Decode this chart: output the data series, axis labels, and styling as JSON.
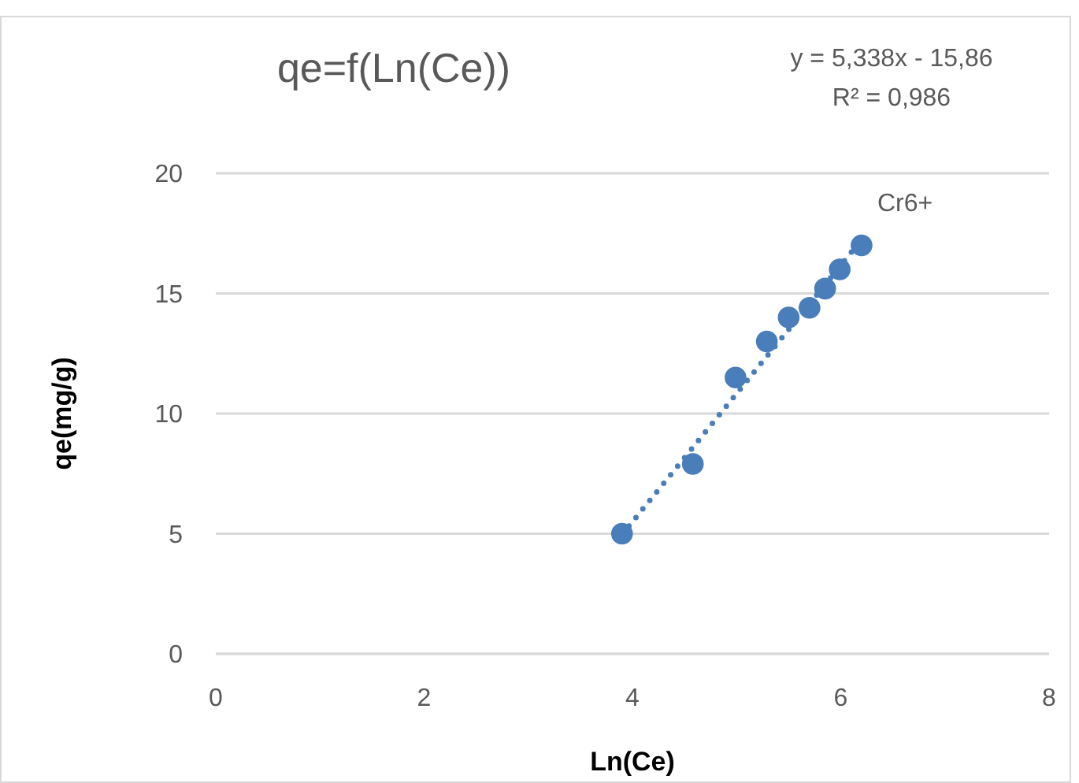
{
  "chart_data": {
    "type": "scatter",
    "title": "qe=f(Ln(Ce))",
    "xlabel": "Ln(Ce)",
    "ylabel": "qe(mg/g)",
    "annotations": [
      "y = 5,338x - 15,86",
      "R² = 0,986"
    ],
    "xlim": [
      0,
      8
    ],
    "xticks": [
      0,
      2,
      4,
      6,
      8
    ],
    "ylim": [
      0,
      20
    ],
    "yticks": [
      0,
      5,
      10,
      15,
      20
    ],
    "grid": "y",
    "marker": "circle",
    "series": [
      {
        "name": "Cr6+",
        "color": "#4a7ebb",
        "x": [
          3.9,
          4.58,
          4.99,
          5.29,
          5.5,
          5.7,
          5.85,
          5.99,
          6.2
        ],
        "values": [
          5,
          7.9,
          11.5,
          13,
          14,
          14.4,
          15.2,
          16,
          17
        ]
      },
      {
        "type": "line",
        "color": "#4a7ebb",
        "line_style": "dotted",
        "marker": "none",
        "x": [
          3.9,
          6.2
        ],
        "values": [
          4.96,
          17.24
        ]
      }
    ]
  }
}
